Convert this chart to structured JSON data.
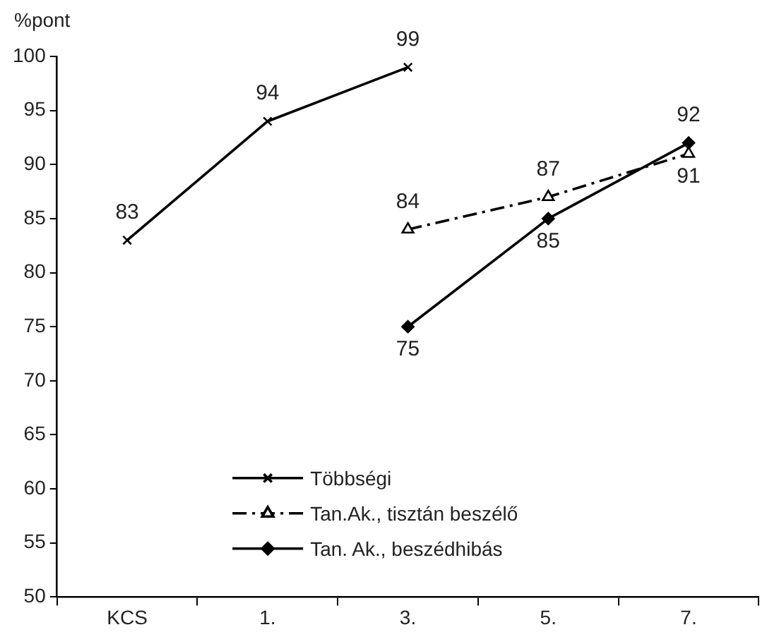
{
  "chart_data": {
    "type": "line",
    "ylabel": "%pont",
    "categories": [
      "KCS",
      "1.",
      "3.",
      "5.",
      "7."
    ],
    "series": [
      {
        "name": "Többségi",
        "color": "#000000",
        "marker": "cross",
        "line_style": "solid",
        "values": [
          83,
          94,
          99,
          null,
          null
        ]
      },
      {
        "name": "Tan.Ak., tisztán beszélő",
        "color": "#000000",
        "marker": "triangle",
        "line_style": "dashed",
        "values": [
          null,
          null,
          84,
          87,
          91
        ]
      },
      {
        "name": "Tan. Ak., beszédhibás",
        "color": "#000000",
        "marker": "diamond",
        "line_style": "solid",
        "values": [
          null,
          null,
          75,
          85,
          92
        ]
      }
    ],
    "ylim": [
      50,
      100
    ],
    "yticks": [
      50,
      55,
      60,
      65,
      70,
      75,
      80,
      85,
      90,
      95,
      100
    ],
    "grid": false,
    "legend": "bottom",
    "data_labels": true
  }
}
